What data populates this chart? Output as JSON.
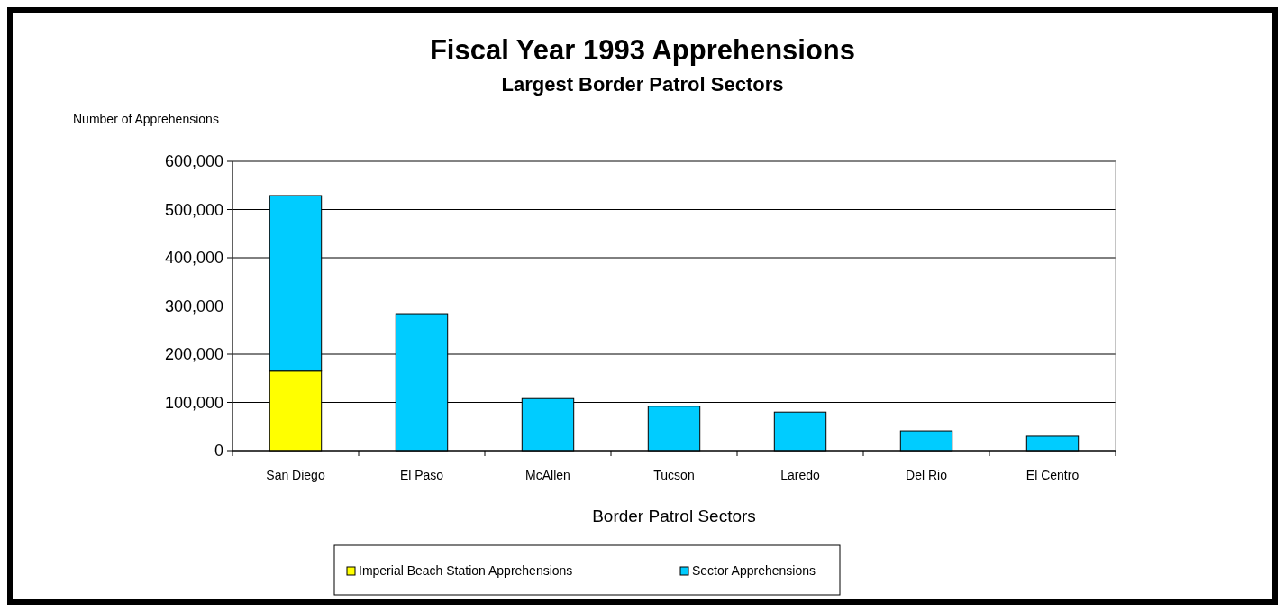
{
  "chart_data": {
    "type": "bar",
    "title": "Fiscal Year 1993 Apprehensions",
    "subtitle": "Largest Border Patrol Sectors",
    "ylabel": "Number of Apprehensions",
    "xlabel": "Border Patrol Sectors",
    "categories": [
      "San Diego",
      "El Paso",
      "McAllen",
      "Tucson",
      "Laredo",
      "Del Rio",
      "El Centro"
    ],
    "series": [
      {
        "name": "Imperial Beach Station Apprehensions",
        "color": "#ffff00",
        "values": [
          165000,
          null,
          null,
          null,
          null,
          null,
          null
        ]
      },
      {
        "name": "Sector Apprehensions",
        "color": "#00ccff",
        "values": [
          364000,
          284000,
          108000,
          92000,
          80000,
          41000,
          30000
        ]
      }
    ],
    "stacked": true,
    "ylim": [
      0,
      600000
    ],
    "yticks": [
      0,
      {
        "value": 100000,
        "label": "100,000"
      },
      {
        "value": 200000,
        "label": "200,000"
      },
      {
        "value": 300000,
        "label": "300,000"
      },
      {
        "value": 400000,
        "label": "400,000"
      },
      {
        "value": 500000,
        "label": "500,000"
      },
      {
        "value": 600000,
        "label": "600,000"
      }
    ],
    "grid": "y",
    "legend": "bottom"
  }
}
